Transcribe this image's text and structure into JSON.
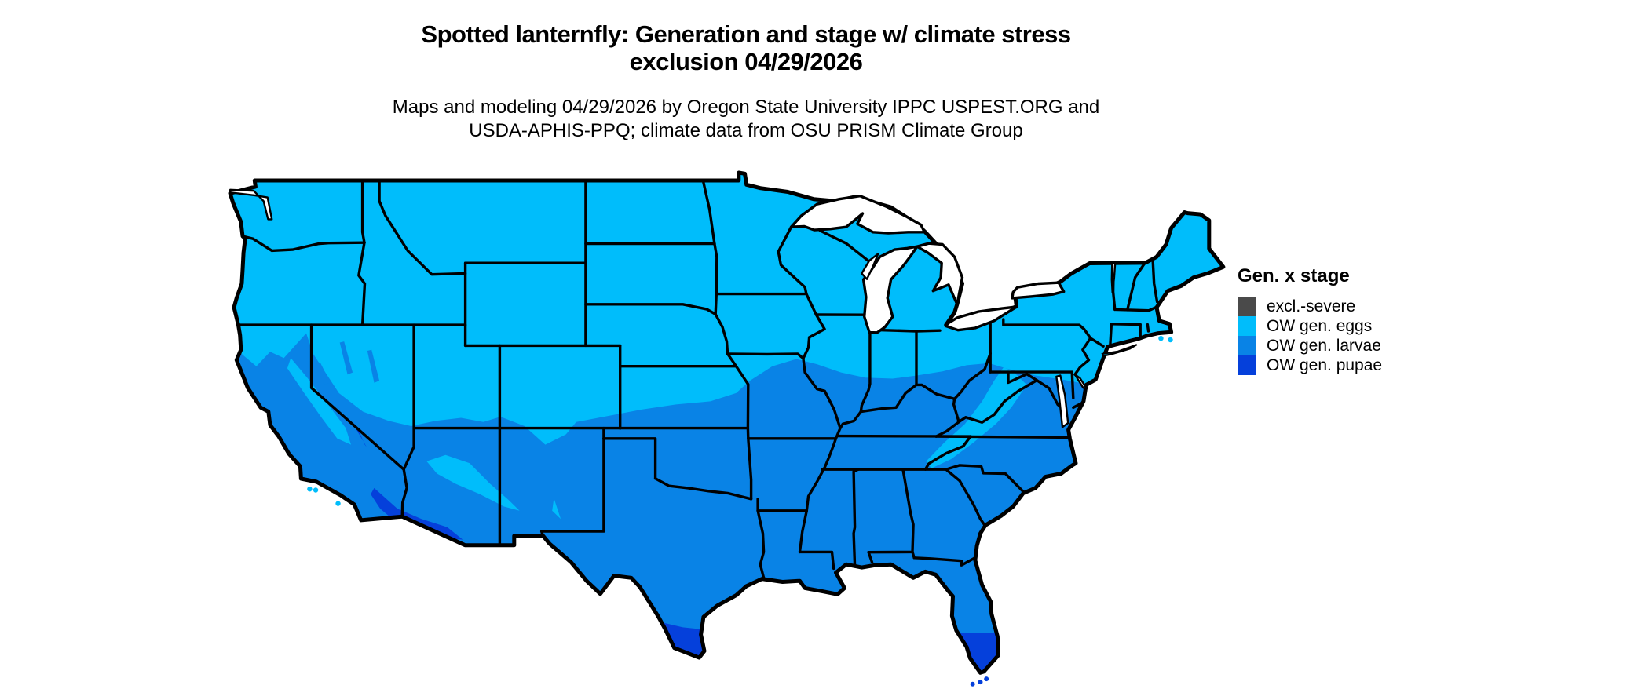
{
  "title": {
    "line1": "Spotted lanternfly: Generation and stage w/ climate stress",
    "line2": "exclusion 04/29/2026"
  },
  "subtitle": {
    "line1": "Maps and modeling 04/29/2026 by Oregon State University IPPC USPEST.ORG and",
    "line2": "USDA-APHIS-PPQ; climate data from OSU PRISM Climate Group"
  },
  "legend": {
    "title": "Gen. x stage",
    "items": [
      {
        "key": "excl",
        "label": "excl.-severe",
        "color": "#4A4A4A"
      },
      {
        "key": "eggs",
        "label": "OW gen. eggs",
        "color": "#00BDFB"
      },
      {
        "key": "larvae",
        "label": "OW gen. larvae",
        "color": "#0983E6"
      },
      {
        "key": "pupae",
        "label": "OW gen. pupae",
        "color": "#0540DB"
      }
    ]
  },
  "map": {
    "type": "choropleth-us-states",
    "model_date": "04/29/2026",
    "stage_distribution": {
      "northern_tier_new_england_rockies_sierra_appalachians": "OW gen. eggs",
      "california_valleys_southwest_plains_south_midwest_southeast_mid_atlantic": "OW gen. larvae",
      "south_texas_south_florida_desert_southwest_death_valley": "OW gen. pupae",
      "excl_severe": "not visibly present on map"
    },
    "water_color": "#FFFFFF",
    "boundary_color": "#000000",
    "background_color": "#FFFFFF"
  }
}
